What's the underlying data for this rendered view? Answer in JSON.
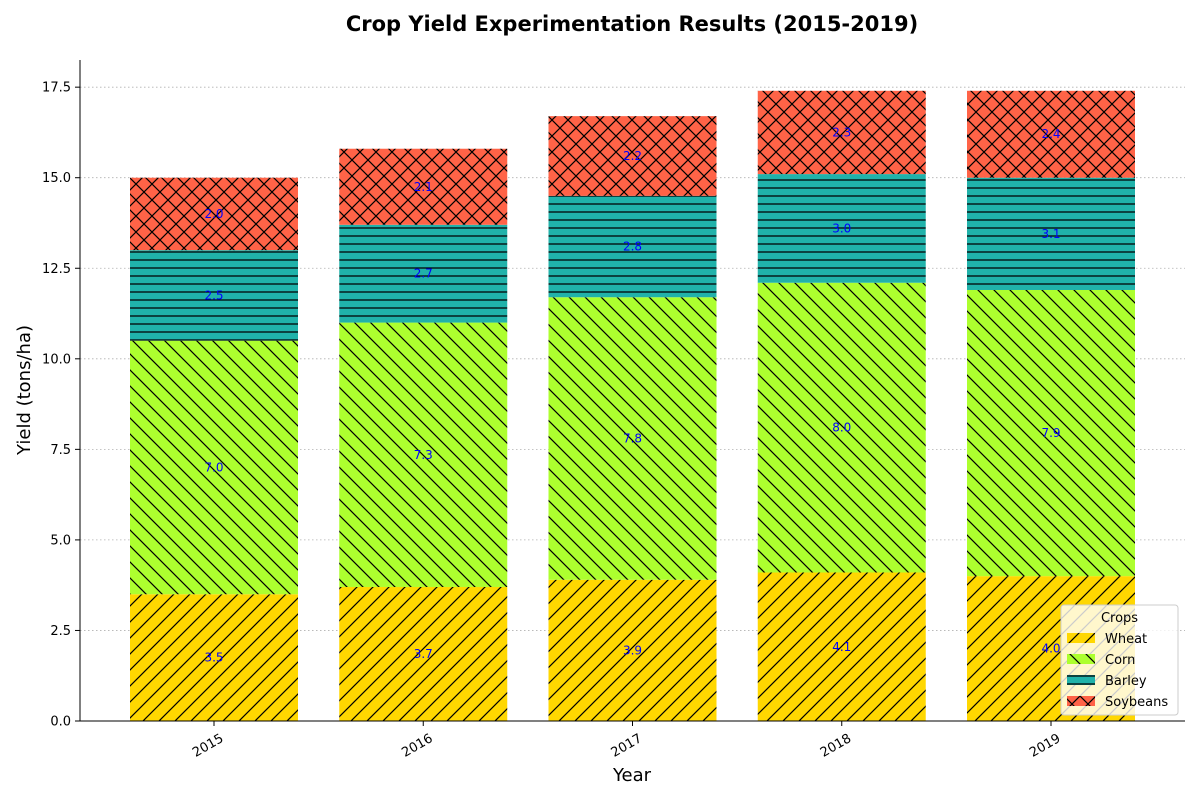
{
  "chart_data": {
    "type": "bar",
    "stacked": true,
    "title": "Crop Yield Experimentation Results (2015-2019)",
    "xlabel": "Year",
    "ylabel": "Yield (tons/ha)",
    "categories": [
      "2015",
      "2016",
      "2017",
      "2018",
      "2019"
    ],
    "ylim": [
      0,
      18.25
    ],
    "yticks": [
      0.0,
      2.5,
      5.0,
      7.5,
      10.0,
      12.5,
      15.0,
      17.5
    ],
    "ytick_labels": [
      "0.0",
      "2.5",
      "5.0",
      "7.5",
      "10.0",
      "12.5",
      "15.0",
      "17.5"
    ],
    "grid": "y, dotted",
    "legend": {
      "title": "Crops",
      "position": "lower-right"
    },
    "series": [
      {
        "name": "Wheat",
        "values": [
          3.5,
          3.7,
          3.9,
          4.1,
          4.0
        ],
        "labels": [
          "3.5",
          "3.7",
          "3.9",
          "4.1",
          "4.0"
        ],
        "color": "#FFD700",
        "hatch": "forward-diagonal"
      },
      {
        "name": "Corn",
        "values": [
          7.0,
          7.3,
          7.8,
          8.0,
          7.9
        ],
        "labels": [
          "7.0",
          "7.3",
          "7.8",
          "8.0",
          "7.9"
        ],
        "color": "#ADFF2F",
        "hatch": "back-diagonal"
      },
      {
        "name": "Barley",
        "values": [
          2.5,
          2.7,
          2.8,
          3.0,
          3.1
        ],
        "labels": [
          "2.5",
          "2.7",
          "2.8",
          "3.0",
          "3.1"
        ],
        "color": "#20B2AA",
        "hatch": "horizontal"
      },
      {
        "name": "Soybeans",
        "values": [
          2.0,
          2.1,
          2.2,
          2.3,
          2.4
        ],
        "labels": [
          "2.0",
          "2.1",
          "2.2",
          "2.3",
          "2.4"
        ],
        "color": "#FF6347",
        "hatch": "cross"
      }
    ],
    "data_label_color": "#0000FF"
  }
}
